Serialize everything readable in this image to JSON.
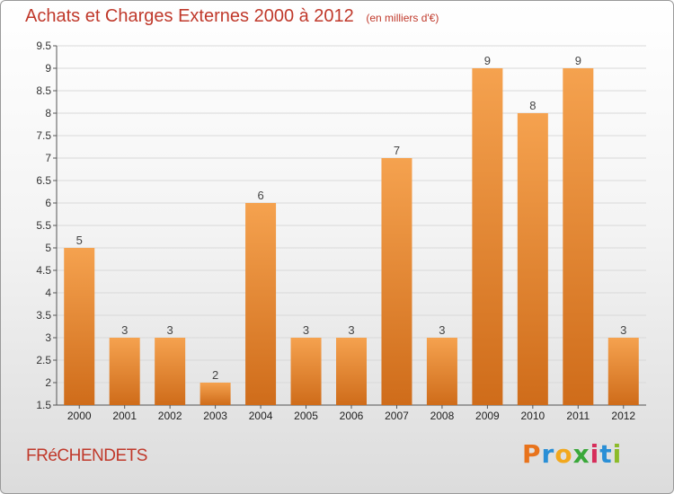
{
  "header": {
    "title": "Achats et Charges Externes 2000 à 2012",
    "unit": "(en milliers d'€)"
  },
  "footer": {
    "commune": "FRéCHENDETS",
    "logo_letters": [
      "P",
      "r",
      "o",
      "x",
      "i",
      "t",
      "i"
    ],
    "logo_colors": [
      "#e8731c",
      "#2a8fd6",
      "#f2a81d",
      "#3aa83a",
      "#d62d5a",
      "#2a8fd6",
      "#8cbb2a"
    ]
  },
  "colors": {
    "bar_top": "#f5a24f",
    "bar_bottom": "#cf6c1a",
    "title": "#c0392b"
  },
  "chart_data": {
    "type": "bar",
    "categories": [
      "2000",
      "2001",
      "2002",
      "2003",
      "2004",
      "2005",
      "2006",
      "2007",
      "2008",
      "2009",
      "2010",
      "2011",
      "2012"
    ],
    "values": [
      5,
      3,
      3,
      2,
      6,
      3,
      3,
      7,
      3,
      9,
      8,
      9,
      3
    ],
    "ylim": [
      1.5,
      9.5
    ],
    "yticks": [
      "1.5",
      "2",
      "2.5",
      "3",
      "3.5",
      "4",
      "4.5",
      "5",
      "5.5",
      "6",
      "6.5",
      "7",
      "7.5",
      "8",
      "8.5",
      "9",
      "9.5"
    ],
    "grid": true,
    "xlabel": "",
    "ylabel": ""
  }
}
